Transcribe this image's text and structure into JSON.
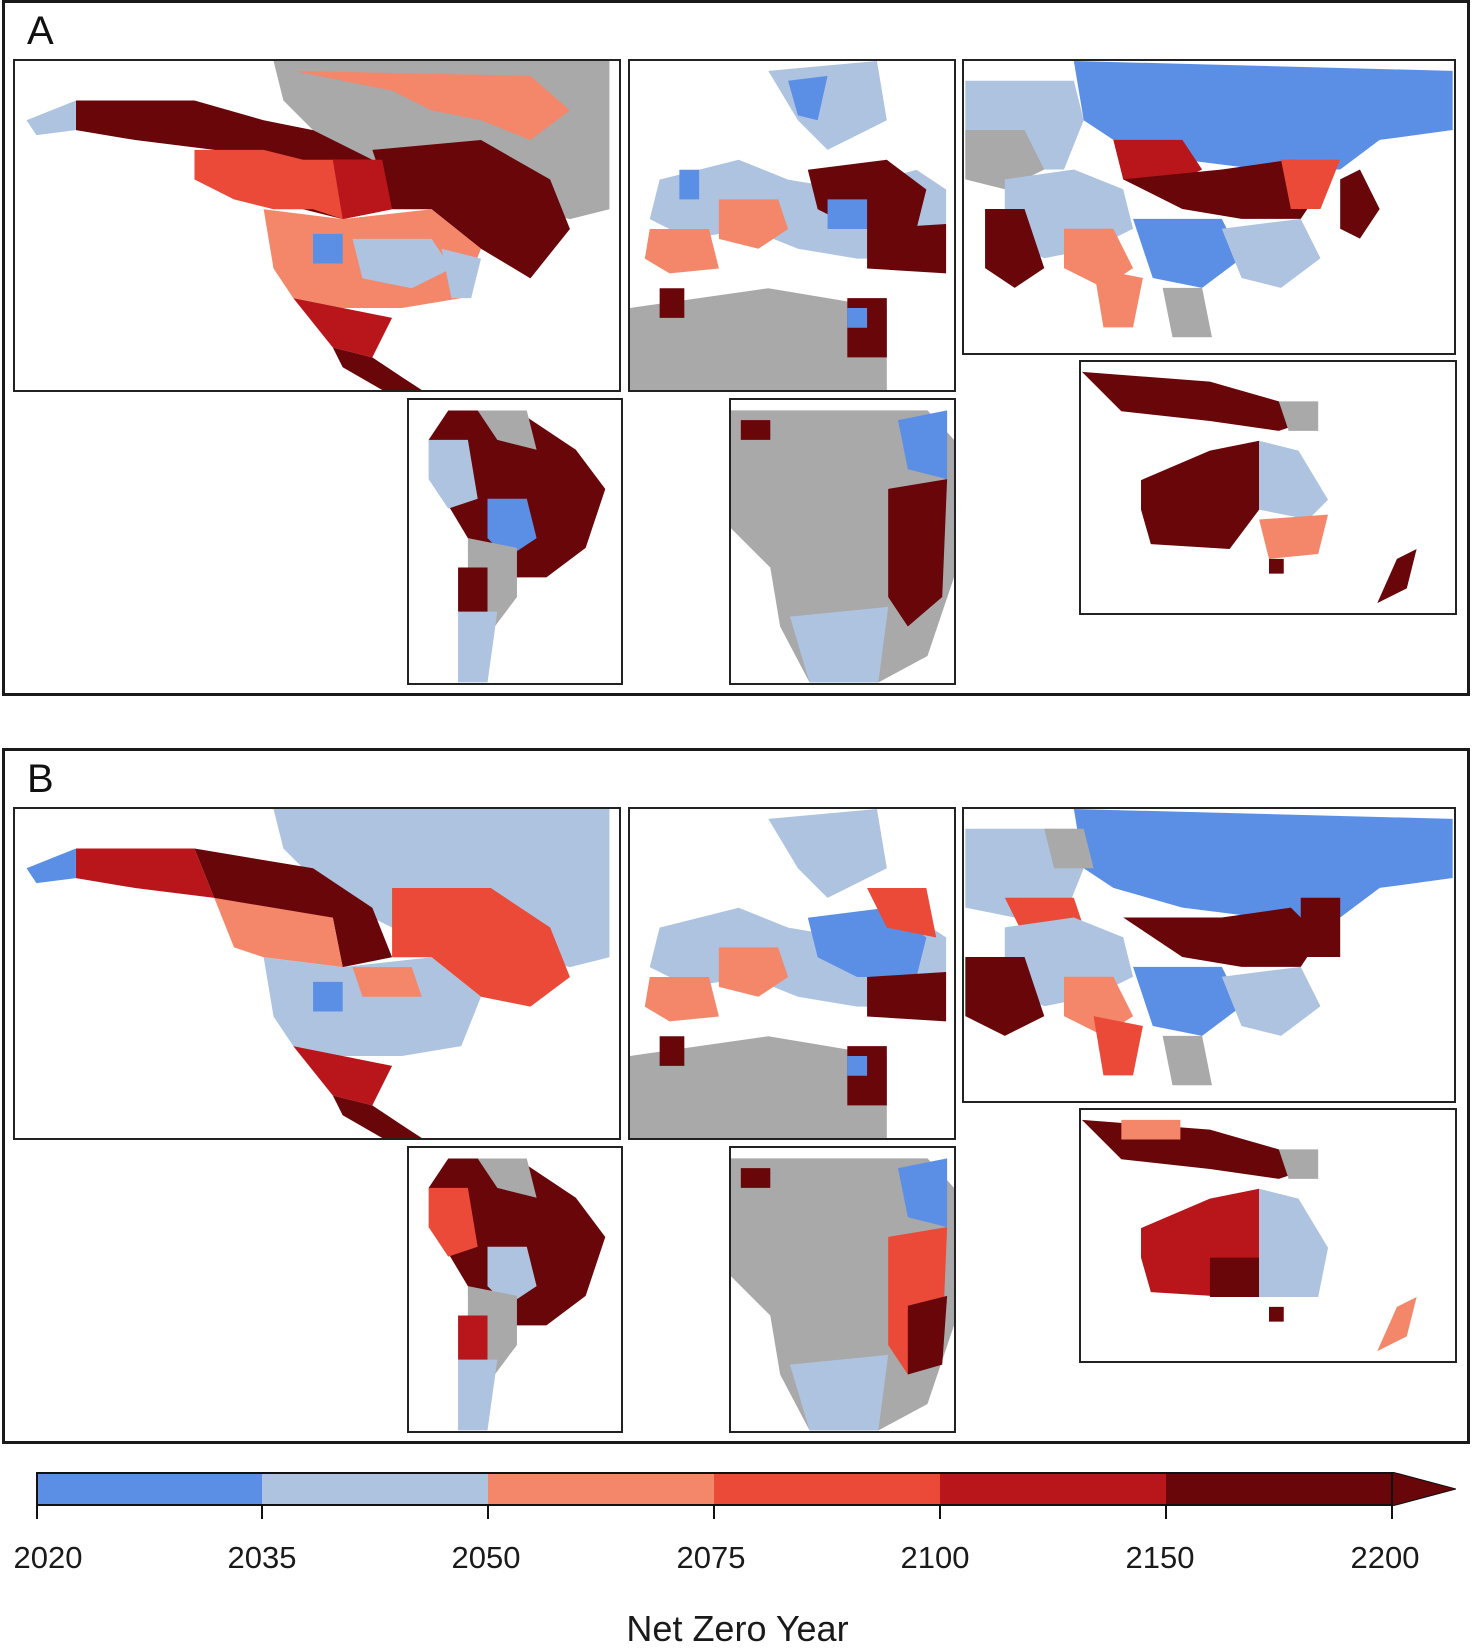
{
  "panels": [
    {
      "letter": "A"
    },
    {
      "letter": "B"
    }
  ],
  "legend": {
    "title": "Net Zero Year",
    "ticks": [
      "2020",
      "2035",
      "2050",
      "2075",
      "2100",
      "2150",
      "2200"
    ],
    "extend": "max",
    "bins": [
      {
        "range": "2020-2035",
        "color": "#5b8fe6"
      },
      {
        "range": "2035-2050",
        "color": "#adc3e0"
      },
      {
        "range": "2050-2075",
        "color": "#f4876a"
      },
      {
        "range": "2075-2100",
        "color": "#ea4a37"
      },
      {
        "range": "2100-2150",
        "color": "#b8161b"
      },
      {
        "range": ">2150",
        "color": "#680609"
      }
    ],
    "no_data_color": "#a9a9a9"
  },
  "regions": [
    "North America",
    "Europe & North Africa",
    "Asia",
    "South America",
    "Southern Africa",
    "Oceania"
  ]
}
